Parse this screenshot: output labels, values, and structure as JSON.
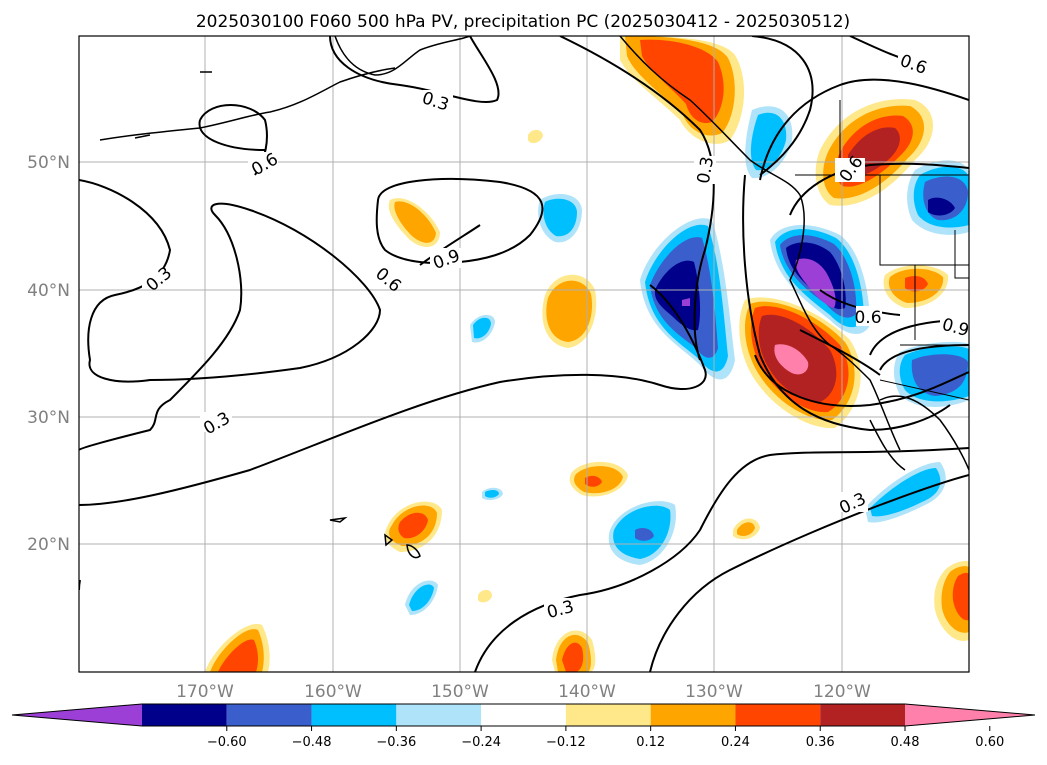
{
  "title": "2025030100 F060 500 hPa PV, precipitation PC (2025030412 - 2025030512)",
  "map": {
    "lat_ticks": [
      "50°N",
      "40°N",
      "30°N",
      "20°N"
    ],
    "lon_ticks": [
      "170°W",
      "160°W",
      "150°W",
      "140°W",
      "130°W",
      "120°W"
    ],
    "contour_labels": [
      "0.3",
      "0.6",
      "0.9"
    ]
  },
  "colorbar": {
    "ticks": [
      "−0.60",
      "−0.48",
      "−0.36",
      "−0.24",
      "−0.12",
      "0.12",
      "0.24",
      "0.36",
      "0.48",
      "0.60"
    ],
    "colors": [
      "#9c3fd6",
      "#00008b",
      "#3a5fcd",
      "#00bfff",
      "#aee3fa",
      "#ffffff",
      "#ffe88a",
      "#ffa500",
      "#ff4500",
      "#b22222",
      "#ff80aa"
    ]
  }
}
